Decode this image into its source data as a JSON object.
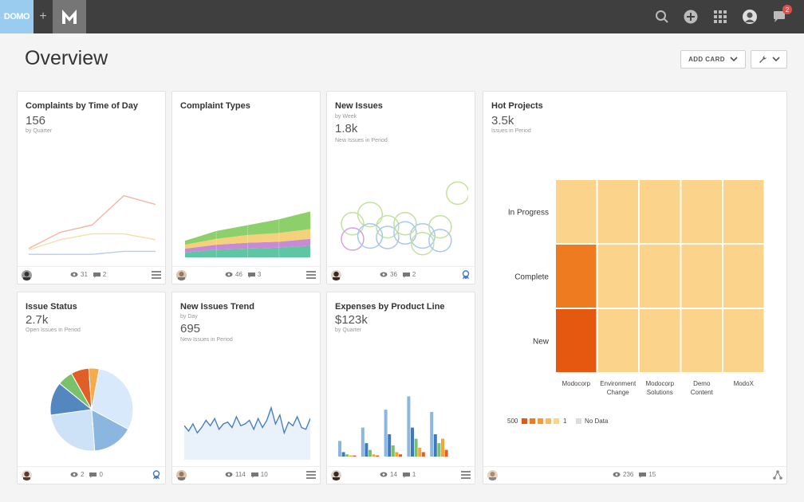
{
  "nav": {
    "logo_text": "DOMO",
    "plus": "+",
    "m_logo_letter": "M",
    "notification_count": "2",
    "icons": [
      "search-icon",
      "add-icon",
      "apps-grid-icon",
      "profile-avatar",
      "chat-icon"
    ]
  },
  "header": {
    "title": "Overview",
    "add_card_label": "ADD CARD"
  },
  "cards": {
    "complaints_tod": {
      "title": "Complaints by Time of Day",
      "value": "156",
      "period": "by Quarter",
      "views": "31",
      "comments": "2"
    },
    "complaint_types": {
      "title": "Complaint Types",
      "views": "46",
      "comments": "3"
    },
    "new_issues": {
      "title": "New Issues",
      "period": "by Week",
      "value": "1.8k",
      "value_label": "New Issues in Period",
      "views": "36",
      "comments": "2"
    },
    "hot_projects": {
      "title": "Hot Projects",
      "value": "3.5k",
      "value_label": "Issues in Period",
      "views": "236",
      "comments": "15"
    },
    "issue_status": {
      "title": "Issue Status",
      "value": "2.7k",
      "value_label": "Open Issues in Period",
      "views": "2",
      "comments": "0"
    },
    "new_issues_trend": {
      "title": "New Issues Trend",
      "period": "by Day",
      "value": "695",
      "value_label": "New Issues in Period",
      "views": "114",
      "comments": "10"
    },
    "expenses": {
      "title": "Expenses by Product Line",
      "value": "$123k",
      "period": "by Quarter",
      "views": "14",
      "comments": "1"
    }
  },
  "chart_data": [
    {
      "card": "Complaints by Time of Day",
      "type": "line",
      "x": [
        1,
        2,
        3,
        4,
        5
      ],
      "series": [
        {
          "values": [
            10,
            32,
            42,
            82,
            70
          ],
          "color": "#f2b6a4"
        },
        {
          "values": [
            8,
            22,
            30,
            30,
            22
          ],
          "color": "#f7dcae"
        },
        {
          "values": [
            2,
            2,
            2,
            6,
            6
          ],
          "color": "#b6cdef"
        }
      ],
      "ylim": [
        0,
        100
      ]
    },
    {
      "card": "Complaint Types",
      "type": "area",
      "x": [
        1,
        2,
        3,
        4,
        5
      ],
      "series": [
        {
          "values": [
            5,
            8,
            9,
            10,
            12
          ],
          "color": "#5fc5a3"
        },
        {
          "values": [
            4,
            5,
            6,
            6,
            7
          ],
          "color": "#c78bd6"
        },
        {
          "values": [
            4,
            6,
            8,
            9,
            10
          ],
          "color": "#f5d17b"
        },
        {
          "values": [
            4,
            8,
            10,
            14,
            18
          ],
          "color": "#8bd06a"
        }
      ],
      "ylim": [
        0,
        80
      ]
    },
    {
      "card": "New Issues",
      "type": "scatter",
      "points": [
        {
          "x": 1,
          "y": 2.2,
          "r": 1.0,
          "color": "#c4e0a0"
        },
        {
          "x": 2,
          "y": 2.8,
          "r": 1.1,
          "color": "#c4e0a0"
        },
        {
          "x": 3,
          "y": 2.0,
          "r": 1.0,
          "color": "#c4e0a0"
        },
        {
          "x": 4,
          "y": 1.6,
          "r": 1.0,
          "color": "#a7c8ef"
        },
        {
          "x": 5,
          "y": 1.4,
          "r": 1.1,
          "color": "#a7c8ef"
        },
        {
          "x": 6,
          "y": 2.0,
          "r": 1.0,
          "color": "#c4e0a0"
        },
        {
          "x": 7,
          "y": 4.2,
          "r": 1.0,
          "color": "#c4e0a0"
        },
        {
          "x": 1,
          "y": 1.2,
          "r": 1.0,
          "color": "#d2a4dc"
        },
        {
          "x": 2,
          "y": 1.4,
          "r": 1.1,
          "color": "#a7c8ef"
        },
        {
          "x": 3,
          "y": 1.3,
          "r": 1.0,
          "color": "#a7c8ef"
        },
        {
          "x": 4,
          "y": 2.2,
          "r": 1.0,
          "color": "#c4e0a0"
        },
        {
          "x": 5,
          "y": 0.9,
          "r": 1.0,
          "color": "#c4e0a0"
        },
        {
          "x": 6,
          "y": 1.1,
          "r": 1.0,
          "color": "#a7c8ef"
        }
      ],
      "xlim": [
        0,
        7.6
      ],
      "ylim": [
        0,
        5
      ]
    },
    {
      "card": "Hot Projects",
      "type": "heatmap",
      "rows": [
        "In Progress",
        "Complete",
        "New"
      ],
      "columns": [
        "Modocorp",
        "Environment Change",
        "Modocorp Solutions",
        "Demo Content",
        "ModoX"
      ],
      "values": [
        [
          1,
          1,
          1,
          1,
          1
        ],
        [
          4,
          1,
          1,
          1,
          1
        ],
        [
          5,
          1,
          1,
          1,
          1
        ]
      ],
      "legend": {
        "max": "500",
        "min": "1",
        "no_data": "No Data"
      },
      "colors": [
        "#fcd38a",
        "#f8b967",
        "#f59a3e",
        "#ee7b20",
        "#e4580f"
      ]
    },
    {
      "card": "Issue Status",
      "type": "pie",
      "slices": [
        {
          "value": 30,
          "color": "#d8e9fb"
        },
        {
          "value": 16,
          "color": "#8ab6e0"
        },
        {
          "value": 24,
          "color": "#cde2f7"
        },
        {
          "value": 13,
          "color": "#5487c0"
        },
        {
          "value": 6,
          "color": "#79c16b"
        },
        {
          "value": 7,
          "color": "#e05f26"
        },
        {
          "value": 4,
          "color": "#f6aa4d"
        }
      ]
    },
    {
      "card": "New Issues Trend",
      "type": "area",
      "x": [
        1,
        2,
        3,
        4,
        5,
        6,
        7,
        8,
        9,
        10,
        11,
        12,
        13,
        14,
        15,
        16,
        17,
        18,
        19,
        20,
        21,
        22,
        23,
        24,
        25,
        26,
        27,
        28,
        29,
        30
      ],
      "series": [
        {
          "values": [
            38,
            32,
            40,
            30,
            36,
            44,
            38,
            46,
            34,
            40,
            42,
            36,
            48,
            38,
            40,
            44,
            34,
            46,
            36,
            44,
            58,
            40,
            50,
            30,
            42,
            38,
            48,
            36,
            34,
            46
          ],
          "color": "#4a7fbf"
        }
      ],
      "ylim": [
        0,
        80
      ]
    },
    {
      "card": "Expenses by Product Line",
      "type": "bar",
      "categories": [
        "1",
        "2",
        "3",
        "4",
        "5",
        "6",
        "7",
        "8",
        "9",
        "10",
        "11",
        "12",
        "13",
        "14",
        "15",
        "16",
        "17",
        "18",
        "19",
        "20",
        "21",
        "22",
        "23",
        "24",
        "25"
      ],
      "values": [
        14,
        4,
        2,
        1,
        1,
        26,
        12,
        6,
        2,
        1,
        42,
        20,
        10,
        4,
        2,
        54,
        26,
        16,
        8,
        4,
        40,
        20,
        12,
        16,
        6
      ],
      "colors": [
        "#8ab6e0",
        "#3e79c0",
        "#79c16b",
        "#f6a33a",
        "#e05f26"
      ],
      "ylim": [
        0,
        60
      ]
    }
  ]
}
